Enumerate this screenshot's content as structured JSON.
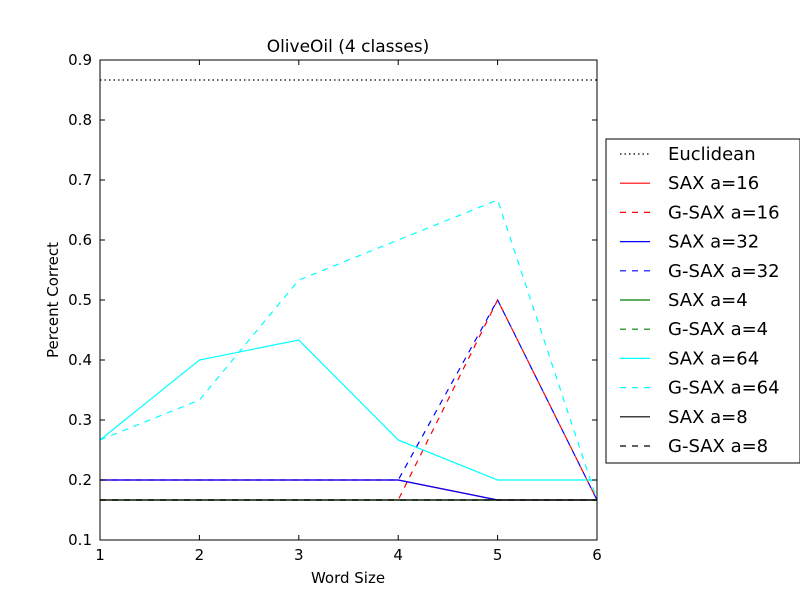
{
  "chart_data": {
    "type": "line",
    "title": "OliveOil (4 classes)",
    "xlabel": "Word Size",
    "ylabel": "Percent Correct",
    "xlim": [
      1,
      6
    ],
    "ylim": [
      0.1,
      0.9
    ],
    "xticks": [
      "1",
      "2",
      "3",
      "4",
      "5",
      "6"
    ],
    "yticks": [
      "0.1",
      "0.2",
      "0.3",
      "0.4",
      "0.5",
      "0.6",
      "0.7",
      "0.8",
      "0.9"
    ],
    "grid": false,
    "legend_position": "outside-right",
    "x": [
      1,
      2,
      3,
      4,
      5,
      6
    ],
    "series": [
      {
        "name": "Euclidean",
        "color": "#000000",
        "style": "dotted",
        "values": [
          0.8667,
          0.8667,
          0.8667,
          0.8667,
          0.8667,
          0.8667
        ]
      },
      {
        "name": "SAX a=16",
        "color": "#ff0000",
        "style": "solid",
        "values": [
          0.2,
          0.2,
          0.2,
          0.2,
          0.1667,
          0.1667
        ]
      },
      {
        "name": "G-SAX a=16",
        "color": "#ff0000",
        "style": "dashed",
        "values": [
          0.1667,
          0.1667,
          0.1667,
          0.1667,
          0.5,
          0.1667
        ]
      },
      {
        "name": "SAX a=32",
        "color": "#0000ff",
        "style": "solid",
        "values": [
          0.2,
          0.2,
          0.2,
          0.2,
          0.1667,
          0.1667
        ]
      },
      {
        "name": "G-SAX a=32",
        "color": "#0000ff",
        "style": "dashed",
        "values": [
          0.2,
          0.2,
          0.2,
          0.2,
          0.5,
          0.1667
        ]
      },
      {
        "name": "SAX a=4",
        "color": "#008000",
        "style": "solid",
        "values": [
          0.1667,
          0.1667,
          0.1667,
          0.1667,
          0.1667,
          0.1667
        ]
      },
      {
        "name": "G-SAX a=4",
        "color": "#008000",
        "style": "dashed",
        "values": [
          0.1667,
          0.1667,
          0.1667,
          0.1667,
          0.1667,
          0.1667
        ]
      },
      {
        "name": "SAX a=64",
        "color": "#00ffff",
        "style": "solid",
        "values": [
          0.2667,
          0.4,
          0.4333,
          0.2667,
          0.2,
          0.2
        ]
      },
      {
        "name": "G-SAX a=64",
        "color": "#00ffff",
        "style": "dashed",
        "values": [
          0.2667,
          0.3333,
          0.5333,
          0.6,
          0.6667,
          0.1667
        ]
      },
      {
        "name": "SAX a=8",
        "color": "#000000",
        "style": "solid",
        "values": [
          0.1667,
          0.1667,
          0.1667,
          0.1667,
          0.1667,
          0.1667
        ]
      },
      {
        "name": "G-SAX a=8",
        "color": "#000000",
        "style": "dashed",
        "values": [
          0.1667,
          0.1667,
          0.1667,
          0.1667,
          0.1667,
          0.1667
        ]
      }
    ]
  }
}
